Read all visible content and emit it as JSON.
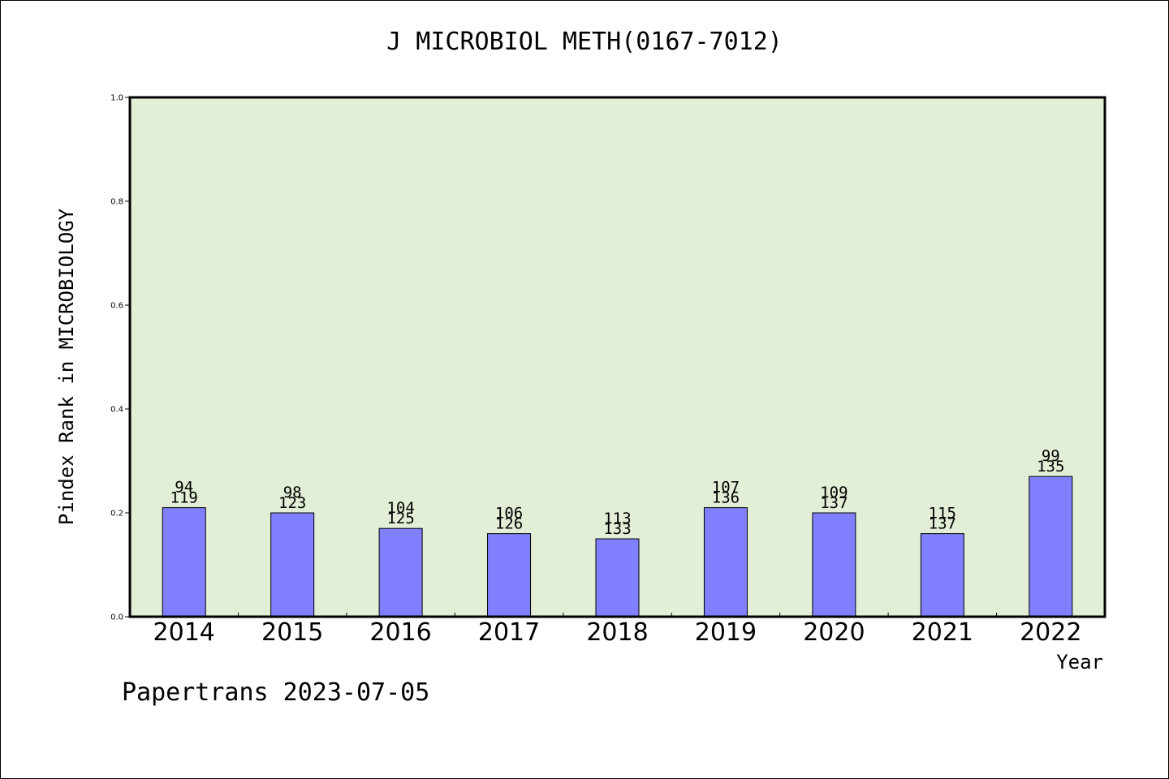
{
  "chart_data": {
    "type": "bar",
    "title": "J MICROBIOL METH(0167-7012)",
    "xlabel": "Year",
    "ylabel": "Pindex Rank in MICROBIOLOGY",
    "ylim": [
      0,
      1.0
    ],
    "yticks": [
      "0.0",
      "0.2",
      "0.4",
      "0.6",
      "0.8",
      "1.0"
    ],
    "categories": [
      "2014",
      "2015",
      "2016",
      "2017",
      "2018",
      "2019",
      "2020",
      "2021",
      "2022"
    ],
    "values": [
      0.21,
      0.2,
      0.17,
      0.16,
      0.15,
      0.21,
      0.2,
      0.16,
      0.27
    ],
    "labels_top": [
      "94",
      "98",
      "104",
      "106",
      "113",
      "107",
      "109",
      "115",
      "99"
    ],
    "labels_bottom": [
      "119",
      "123",
      "125",
      "126",
      "133",
      "136",
      "137",
      "137",
      "135"
    ],
    "grid": false,
    "colors": {
      "plot_background": "#e2efd6",
      "bar": "#8080ff",
      "axis": "#000000"
    }
  },
  "footer": "Papertrans 2023-07-05"
}
